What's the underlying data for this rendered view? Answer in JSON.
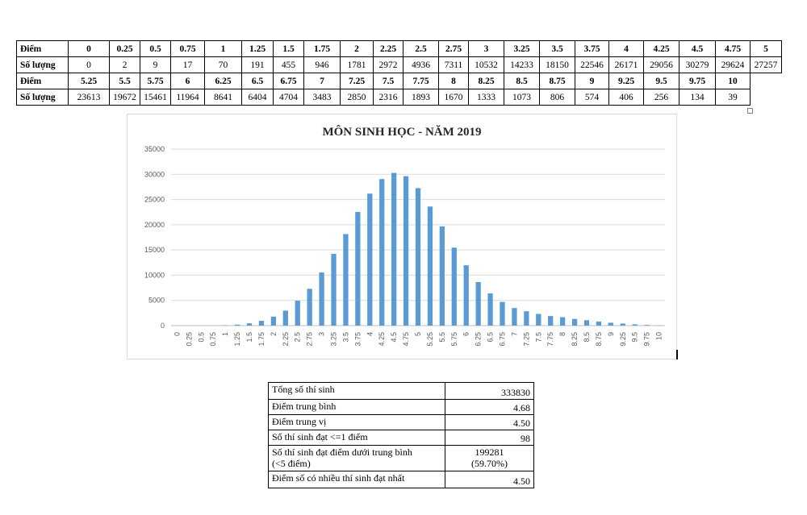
{
  "score_table": {
    "row_label_score": "Điểm",
    "row_label_count": "Số lượng",
    "row1_scores": [
      "0",
      "0.25",
      "0.5",
      "0.75",
      "1",
      "1.25",
      "1.5",
      "1.75",
      "2",
      "2.25",
      "2.5",
      "2.75",
      "3",
      "3.25",
      "3.5",
      "3.75",
      "4",
      "4.25",
      "4.5",
      "4.75",
      "5"
    ],
    "row1_counts": [
      "0",
      "2",
      "9",
      "17",
      "70",
      "191",
      "455",
      "946",
      "1781",
      "2972",
      "4936",
      "7311",
      "10532",
      "14233",
      "18150",
      "22546",
      "26171",
      "29056",
      "30279",
      "29624",
      "27257"
    ],
    "row2_scores": [
      "5.25",
      "5.5",
      "5.75",
      "6",
      "6.25",
      "6.5",
      "6.75",
      "7",
      "7.25",
      "7.5",
      "7.75",
      "8",
      "8.25",
      "8.5",
      "8.75",
      "9",
      "9.25",
      "9.5",
      "9.75",
      "10"
    ],
    "row2_counts": [
      "23613",
      "19672",
      "15461",
      "11964",
      "8641",
      "6404",
      "4704",
      "3483",
      "2850",
      "2316",
      "1893",
      "1670",
      "1333",
      "1073",
      "806",
      "574",
      "406",
      "256",
      "134",
      "39"
    ]
  },
  "chart_data": {
    "type": "bar",
    "title": "MÔN SINH HỌC - NĂM 2019",
    "xlabel": "",
    "ylabel": "",
    "ylim": [
      0,
      35000
    ],
    "y_ticks": [
      "0",
      "5000",
      "10000",
      "15000",
      "20000",
      "25000",
      "30000",
      "35000"
    ],
    "grid": true,
    "color": "#5b9bd5",
    "categories": [
      "0",
      "0.25",
      "0.5",
      "0.75",
      "1",
      "1.25",
      "1.5",
      "1.75",
      "2",
      "2.25",
      "2.5",
      "2.75",
      "3",
      "3.25",
      "3.5",
      "3.75",
      "4",
      "4.25",
      "4.5",
      "4.75",
      "5",
      "5.25",
      "5.5",
      "5.75",
      "6",
      "6.25",
      "6.5",
      "6.75",
      "7",
      "7.25",
      "7.5",
      "7.75",
      "8",
      "8.25",
      "8.5",
      "8.75",
      "9",
      "9.25",
      "9.5",
      "9.75",
      "10"
    ],
    "values": [
      0,
      2,
      9,
      17,
      70,
      191,
      455,
      946,
      1781,
      2972,
      4936,
      7311,
      10532,
      14233,
      18150,
      22546,
      26171,
      29056,
      30279,
      29624,
      27257,
      23613,
      19672,
      15461,
      11964,
      8641,
      6404,
      4704,
      3483,
      2850,
      2316,
      1893,
      1670,
      1333,
      1073,
      806,
      574,
      406,
      256,
      134,
      39
    ]
  },
  "stats": [
    {
      "label": "Tổng số thí sinh",
      "value": "333830"
    },
    {
      "label": "Điểm trung bình",
      "value": "4.68"
    },
    {
      "label": "Điểm trung vị",
      "value": "4.50"
    },
    {
      "label": "Số thí sinh đạt <=1 điểm",
      "value": "98"
    },
    {
      "label": "Số thí sinh đạt điểm dưới trung bình",
      "label2": "(<5 điểm)",
      "value": "199281",
      "value2": "(59.70%)"
    },
    {
      "label": "Điểm số có nhiều thí sinh đạt nhất",
      "value": "4.50"
    }
  ]
}
